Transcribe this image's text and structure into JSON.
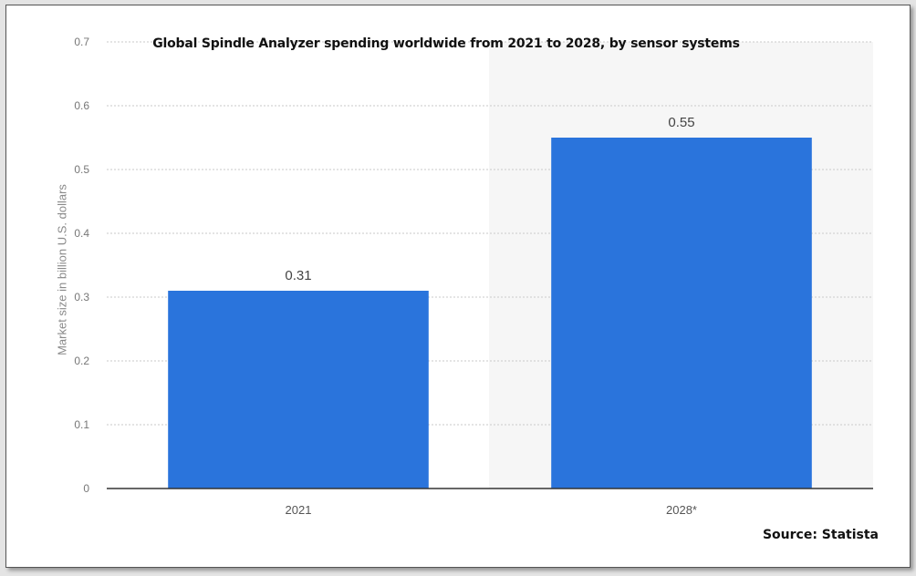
{
  "chart_data": {
    "type": "bar",
    "title": "Global Spindle Analyzer spending worldwide from 2021 to 2028, by sensor systems",
    "categories": [
      "2021",
      "2028*"
    ],
    "values": [
      0.31,
      0.55
    ],
    "data_labels": [
      "0.31",
      "0.55"
    ],
    "ylabel": "Market size in billion U.S. dollars",
    "xlabel": "",
    "ylim": [
      0,
      0.7
    ],
    "yticks": [
      "0",
      "0.1",
      "0.2",
      "0.3",
      "0.4",
      "0.5",
      "0.6",
      "0.7"
    ],
    "grid": true,
    "bar_color": "#2a74dc",
    "source": "Source: Statista"
  }
}
